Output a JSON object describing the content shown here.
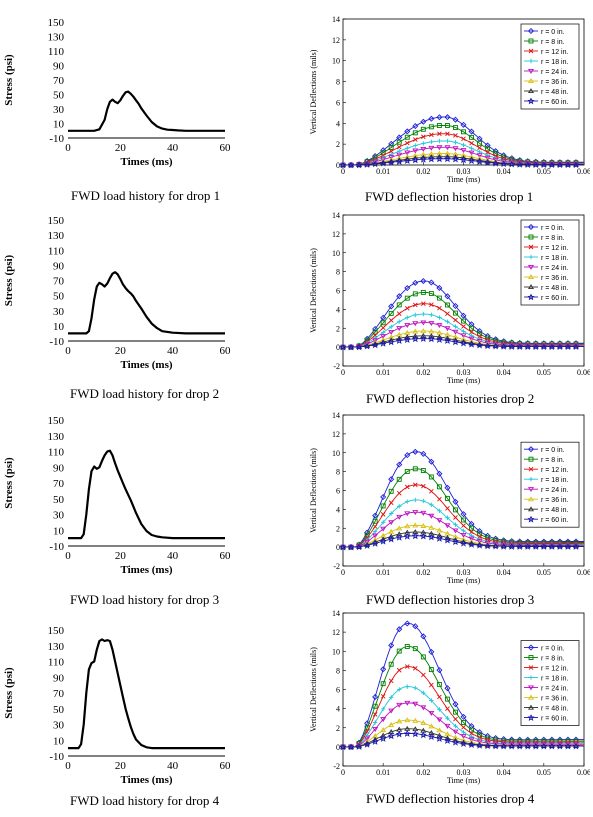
{
  "figure": {
    "rows": [
      {
        "left": {
          "caption": "FWD load history for drop 1",
          "chart_data": {
            "type": "line",
            "xlabel": "Times (ms)",
            "ylabel": "Stress (psi)",
            "xlim": [
              0,
              60
            ],
            "ylim": [
              -10,
              150
            ],
            "xticks": [
              "0",
              "20",
              "40",
              "60"
            ],
            "yticks": [
              "-10",
              "10",
              "30",
              "50",
              "70",
              "90",
              "110",
              "130",
              "150"
            ],
            "series": [
              {
                "x": [
                  0,
                  10,
                  12,
                  14,
                  15,
                  16,
                  17,
                  18,
                  19,
                  20,
                  21,
                  22,
                  23,
                  24,
                  25,
                  26,
                  27,
                  28,
                  30,
                  32,
                  34,
                  36,
                  38,
                  40,
                  42,
                  45,
                  50,
                  55,
                  60
                ],
                "values": [
                  0,
                  0,
                  2,
                  15,
                  30,
                  40,
                  43,
                  40,
                  38,
                  42,
                  48,
                  53,
                  54,
                  51,
                  47,
                  42,
                  37,
                  31,
                  21,
                  12,
                  6,
                  3,
                  1.5,
                  1,
                  0.5,
                  0,
                  0,
                  0,
                  0
                ]
              }
            ]
          }
        },
        "right": {
          "caption": "FWD deflection histories drop 1",
          "chart_data": {
            "type": "line",
            "xlabel": "Time (ms)",
            "ylabel": "Vertical Deflections (mils)",
            "xlim": [
              0,
              0.06
            ],
            "ylim": [
              0,
              14
            ],
            "xticks": [
              "0",
              "0.01",
              "0.02",
              "0.03",
              "0.04",
              "0.05",
              "0.06"
            ],
            "yticks": [
              "0",
              "2",
              "4",
              "6",
              "8",
              "10",
              "12",
              "14"
            ],
            "legend_position": "top-right",
            "peak_x": 0.025,
            "series": [
              {
                "name": "r =   0 in.",
                "peak": 4.6,
                "color": "#1f1fd8"
              },
              {
                "name": "r =   8 in.",
                "peak": 3.8,
                "color": "#008000"
              },
              {
                "name": "r = 12 in.",
                "peak": 3.0,
                "color": "#e01010"
              },
              {
                "name": "r = 18 in.",
                "peak": 2.3,
                "color": "#1fc6d8"
              },
              {
                "name": "r = 24 in.",
                "peak": 1.7,
                "color": "#c010c0"
              },
              {
                "name": "r = 36 in.",
                "peak": 1.1,
                "color": "#d8c010"
              },
              {
                "name": "r = 48 in.",
                "peak": 0.8,
                "color": "#303030"
              },
              {
                "name": "r = 60 in.",
                "peak": 0.6,
                "color": "#1a1ab0"
              }
            ]
          }
        }
      },
      {
        "left": {
          "caption": "FWD load history for drop 2",
          "chart_data": {
            "type": "line",
            "xlabel": "Times (ms)",
            "ylabel": "Stress (psi)",
            "xlim": [
              0,
              60
            ],
            "ylim": [
              -10,
              150
            ],
            "xticks": [
              "0",
              "20",
              "40",
              "60"
            ],
            "yticks": [
              "-10",
              "10",
              "30",
              "50",
              "70",
              "90",
              "110",
              "130",
              "150"
            ],
            "series": [
              {
                "x": [
                  0,
                  7,
                  8,
                  9,
                  10,
                  11,
                  12,
                  13,
                  14,
                  15,
                  16,
                  17,
                  18,
                  19,
                  20,
                  21,
                  22,
                  23,
                  24,
                  25,
                  26,
                  28,
                  30,
                  32,
                  34,
                  36,
                  40,
                  45,
                  50,
                  60
                ],
                "values": [
                  0,
                  0,
                  3,
                  20,
                  45,
                  62,
                  67,
                  65,
                  62,
                  66,
                  73,
                  79,
                  81,
                  78,
                  72,
                  65,
                  60,
                  56,
                  53,
                  49,
                  43,
                  33,
                  22,
                  13,
                  7,
                  3,
                  1,
                  0,
                  0,
                  0
                ]
              }
            ]
          }
        },
        "right": {
          "caption": "FWD deflection histories drop 2",
          "chart_data": {
            "type": "line",
            "xlabel": "Time (ms)",
            "ylabel": "Vertical Deflections (mils)",
            "xlim": [
              0,
              0.06
            ],
            "ylim": [
              -2,
              14
            ],
            "xticks": [
              "0",
              "0.01",
              "0.02",
              "0.03",
              "0.04",
              "0.05",
              "0.06"
            ],
            "yticks": [
              "-2",
              "0",
              "2",
              "4",
              "6",
              "8",
              "10",
              "12",
              "14"
            ],
            "legend_position": "top-right",
            "peak_x": 0.02,
            "series": [
              {
                "name": "r =   0 in.",
                "peak": 7.0,
                "color": "#1f1fd8"
              },
              {
                "name": "r =   8 in.",
                "peak": 5.8,
                "color": "#008000"
              },
              {
                "name": "r = 12 in.",
                "peak": 4.6,
                "color": "#e01010"
              },
              {
                "name": "r = 18 in.",
                "peak": 3.5,
                "color": "#1fc6d8"
              },
              {
                "name": "r = 24 in.",
                "peak": 2.6,
                "color": "#c010c0"
              },
              {
                "name": "r = 36 in.",
                "peak": 1.7,
                "color": "#d8c010"
              },
              {
                "name": "r = 48 in.",
                "peak": 1.2,
                "color": "#303030"
              },
              {
                "name": "r = 60 in.",
                "peak": 0.9,
                "color": "#1a1ab0"
              }
            ]
          }
        }
      },
      {
        "left": {
          "caption": "FWD load history for drop 3",
          "chart_data": {
            "type": "line",
            "xlabel": "Times (ms)",
            "ylabel": "Stress (psi)",
            "xlim": [
              0,
              60
            ],
            "ylim": [
              -10,
              150
            ],
            "xticks": [
              "0",
              "20",
              "40",
              "60"
            ],
            "yticks": [
              "-10",
              "10",
              "30",
              "50",
              "70",
              "90",
              "110",
              "130",
              "150"
            ],
            "series": [
              {
                "x": [
                  0,
                  5,
                  6,
                  7,
                  8,
                  9,
                  10,
                  11,
                  12,
                  13,
                  14,
                  15,
                  16,
                  17,
                  18,
                  19,
                  20,
                  21,
                  22,
                  23,
                  24,
                  25,
                  26,
                  28,
                  30,
                  32,
                  34,
                  36,
                  40,
                  45,
                  60
                ],
                "values": [
                  0,
                  0,
                  5,
                  30,
                  62,
                  85,
                  91,
                  88,
                  90,
                  98,
                  105,
                  110,
                  111,
                  105,
                  95,
                  86,
                  78,
                  70,
                  62,
                  55,
                  48,
                  40,
                  32,
                  18,
                  9,
                  4,
                  2,
                  1,
                  0,
                  0,
                  0
                ]
              }
            ]
          }
        },
        "right": {
          "caption": "FWD deflection histories drop 3",
          "chart_data": {
            "type": "line",
            "xlabel": "Time (ms)",
            "ylabel": "Vertical Deflections (mils)",
            "xlim": [
              0,
              0.06
            ],
            "ylim": [
              -2,
              14
            ],
            "xticks": [
              "0",
              "0.01",
              "0.02",
              "0.03",
              "0.04",
              "0.05",
              "0.06"
            ],
            "yticks": [
              "-2",
              "0",
              "2",
              "4",
              "6",
              "8",
              "10",
              "12",
              "14"
            ],
            "legend_position": "right",
            "peak_x": 0.018,
            "series": [
              {
                "name": "r =   0 in.",
                "peak": 10.1,
                "color": "#1f1fd8"
              },
              {
                "name": "r =   8 in.",
                "peak": 8.3,
                "color": "#008000"
              },
              {
                "name": "r = 12 in.",
                "peak": 6.6,
                "color": "#e01010"
              },
              {
                "name": "r = 18 in.",
                "peak": 5.0,
                "color": "#1fc6d8"
              },
              {
                "name": "r = 24 in.",
                "peak": 3.7,
                "color": "#c010c0"
              },
              {
                "name": "r = 36 in.",
                "peak": 2.3,
                "color": "#d8c010"
              },
              {
                "name": "r = 48 in.",
                "peak": 1.6,
                "color": "#303030"
              },
              {
                "name": "r = 60 in.",
                "peak": 1.2,
                "color": "#1a1ab0"
              }
            ]
          }
        }
      },
      {
        "left": {
          "caption": "FWD load history for drop 4",
          "chart_data": {
            "type": "line",
            "xlabel": "Times (ms)",
            "ylabel": "Stress (psi)",
            "xlim": [
              0,
              60
            ],
            "ylim": [
              -10,
              150
            ],
            "xticks": [
              "0",
              "20",
              "40",
              "60"
            ],
            "yticks": [
              "-10",
              "10",
              "30",
              "50",
              "70",
              "90",
              "110",
              "130",
              "150"
            ],
            "series": [
              {
                "x": [
                  0,
                  4,
                  5,
                  6,
                  7,
                  8,
                  9,
                  10,
                  11,
                  12,
                  13,
                  14,
                  15,
                  16,
                  17,
                  18,
                  19,
                  20,
                  21,
                  22,
                  23,
                  24,
                  25,
                  26,
                  28,
                  30,
                  32,
                  35,
                  40,
                  60
                ],
                "values": [
                  0,
                  0,
                  5,
                  30,
                  70,
                  100,
                  108,
                  110,
                  125,
                  136,
                  138,
                  136,
                  137,
                  136,
                  125,
                  110,
                  95,
                  80,
                  65,
                  50,
                  38,
                  27,
                  18,
                  11,
                  4,
                  1,
                  0,
                  0,
                  0,
                  0
                ]
              }
            ]
          }
        },
        "right": {
          "caption": "FWD deflection histories drop 4",
          "chart_data": {
            "type": "line",
            "xlabel": "Time (ms)",
            "ylabel": "Vertical Deflections (mils)",
            "xlim": [
              0,
              0.06
            ],
            "ylim": [
              -2,
              14
            ],
            "xticks": [
              "0",
              "0.01",
              "0.02",
              "0.03",
              "0.04",
              "0.05",
              "0.06"
            ],
            "yticks": [
              "-2",
              "0",
              "2",
              "4",
              "6",
              "8",
              "10",
              "12",
              "14"
            ],
            "legend_position": "right",
            "peak_x": 0.016,
            "series": [
              {
                "name": "r =   0 in.",
                "peak": 12.9,
                "color": "#1f1fd8"
              },
              {
                "name": "r =   8 in.",
                "peak": 10.5,
                "color": "#008000"
              },
              {
                "name": "r = 12 in.",
                "peak": 8.4,
                "color": "#e01010"
              },
              {
                "name": "r = 18 in.",
                "peak": 6.3,
                "color": "#1fc6d8"
              },
              {
                "name": "r = 24 in.",
                "peak": 4.6,
                "color": "#c010c0"
              },
              {
                "name": "r = 36 in.",
                "peak": 2.8,
                "color": "#d8c010"
              },
              {
                "name": "r = 48 in.",
                "peak": 1.9,
                "color": "#303030"
              },
              {
                "name": "r = 60 in.",
                "peak": 1.4,
                "color": "#1a1ab0"
              }
            ]
          }
        }
      }
    ]
  }
}
